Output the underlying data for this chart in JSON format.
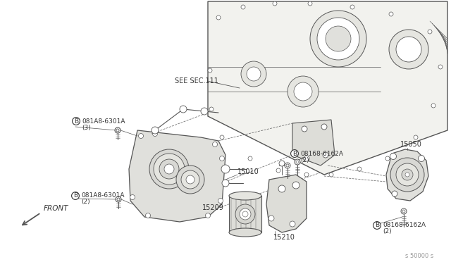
{
  "bg_color": "#ffffff",
  "line_color": "#555555",
  "dashed_color": "#777777",
  "text_color": "#333333",
  "fill_light": "#f0f0ec",
  "fill_mid": "#e8e8e4",
  "labels": {
    "see_sec": "SEE SEC.111",
    "p15050": "15050",
    "p15010": "15010",
    "p15209": "15209",
    "p15210": "15210",
    "bolt1_name": "081A8-6301A",
    "bolt1_qty": "(3)",
    "bolt2_name": "081A8-6301A",
    "bolt2_qty": "(2)",
    "bolt3_name": "08168-6162A",
    "bolt3_qty": "(2)",
    "bolt4_name": "08168-6162A",
    "bolt4_qty": "(2)",
    "front": "FRONT",
    "watermark": "s 50000 s"
  },
  "font_size": 7.0,
  "lw": 0.8
}
